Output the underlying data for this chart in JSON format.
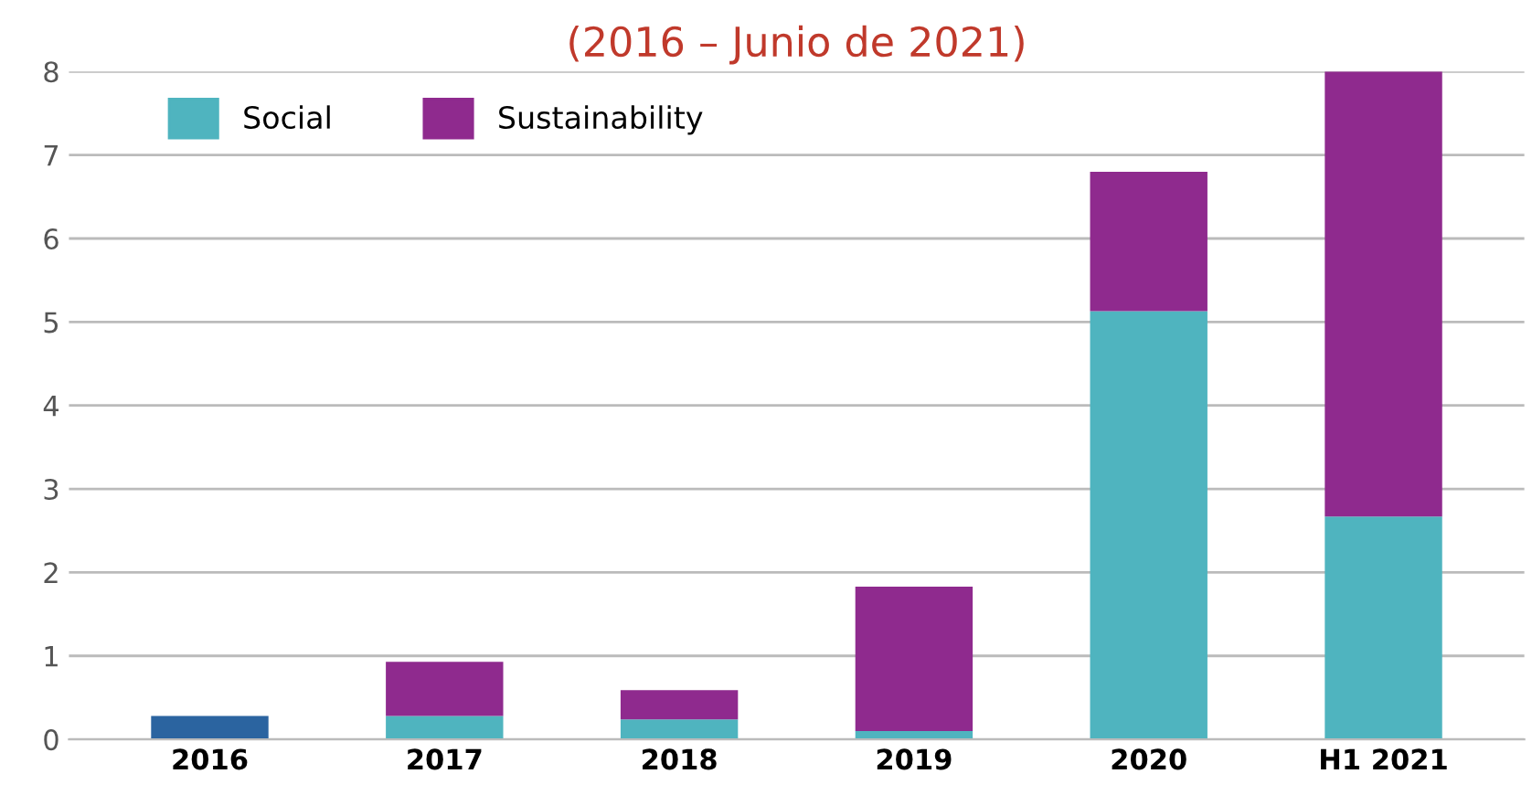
{
  "chart_data": {
    "type": "bar",
    "title": "(2016 – Junio de 2021)",
    "categories": [
      "2016",
      "2017",
      "2018",
      "2019",
      "2020",
      "H1 2021"
    ],
    "stacked": true,
    "series": [
      {
        "color": "#2b64a0",
        "values": [
          0.28,
          null,
          null,
          null,
          null,
          null
        ]
      },
      {
        "name": "Social",
        "color": "#4fb4bf",
        "values": [
          null,
          0.28,
          0.24,
          0.1,
          5.13,
          2.67
        ]
      },
      {
        "name": "Sustainability",
        "color": "#8f2a8e",
        "values": [
          null,
          0.65,
          0.35,
          1.73,
          1.67,
          5.33
        ]
      }
    ],
    "ylim": [
      0,
      8
    ],
    "yticks": [
      0,
      1,
      2,
      3,
      4,
      5,
      6,
      7,
      8
    ],
    "grid": "y",
    "legend": "top left"
  }
}
